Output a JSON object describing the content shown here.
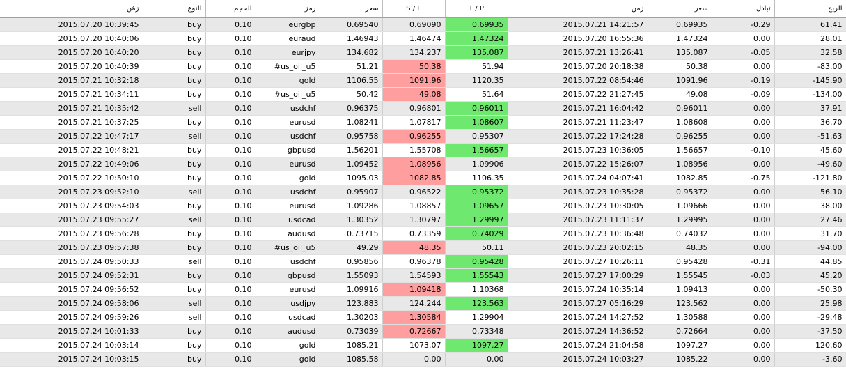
{
  "table": {
    "header": [
      "زمن",
      "النوع",
      "الحجم",
      "رمز",
      "سعر",
      "S / L",
      "T / P",
      "زمن",
      "سعر",
      "تبادل",
      "الربح"
    ],
    "rows": [
      [
        "2015.07.20 10:39:45",
        "buy",
        "0.10",
        "eurgbp",
        "0.69540",
        "0.69090",
        {
          "text": "0.69935",
          "bg": "#6ee86e"
        },
        "2015.07.21 14:21:57",
        "0.69935",
        "-0.29",
        "61.41"
      ],
      [
        "2015.07.20 10:40:06",
        "buy",
        "0.10",
        "euraud",
        "1.46943",
        "1.46474",
        {
          "text": "1.47324",
          "bg": "#6ee86e"
        },
        "2015.07.20 16:55:36",
        "1.47324",
        "0.00",
        "28.01"
      ],
      [
        "2015.07.20 10:40:20",
        "buy",
        "0.10",
        "eurjpy",
        "134.682",
        "134.237",
        {
          "text": "135.087",
          "bg": "#6ee86e"
        },
        "2015.07.21 13:26:41",
        "135.087",
        "-0.05",
        "32.58"
      ],
      [
        "2015.07.20 10:40:39",
        "buy",
        "0.10",
        "#us_oil_u5",
        "51.21",
        {
          "text": "50.38",
          "bg": "#ff9e9e"
        },
        "51.94",
        "2015.07.20 20:18:38",
        "50.38",
        "0.00",
        "-83.00"
      ],
      [
        "2015.07.21 10:32:18",
        "buy",
        "0.10",
        "gold",
        "1106.55",
        {
          "text": "1091.96",
          "bg": "#ff9e9e"
        },
        "1120.35",
        "2015.07.22 08:54:46",
        "1091.96",
        "-0.19",
        "-145.90"
      ],
      [
        "2015.07.21 10:34:11",
        "buy",
        "0.10",
        "#us_oil_u5",
        "50.42",
        {
          "text": "49.08",
          "bg": "#ff9e9e"
        },
        "51.64",
        "2015.07.22 21:27:45",
        "49.08",
        "-0.09",
        "-134.00"
      ],
      [
        "2015.07.21 10:35:42",
        "sell",
        "0.10",
        "usdchf",
        "0.96375",
        "0.96801",
        {
          "text": "0.96011",
          "bg": "#6ee86e"
        },
        "2015.07.21 16:04:42",
        "0.96011",
        "0.00",
        "37.91"
      ],
      [
        "2015.07.21 10:37:25",
        "buy",
        "0.10",
        "eurusd",
        "1.08241",
        "1.07817",
        {
          "text": "1.08607",
          "bg": "#6ee86e"
        },
        "2015.07.21 11:23:47",
        "1.08608",
        "0.00",
        "36.70"
      ],
      [
        "2015.07.22 10:47:17",
        "sell",
        "0.10",
        "usdchf",
        "0.95758",
        {
          "text": "0.96255",
          "bg": "#ff9e9e"
        },
        "0.95307",
        "2015.07.22 17:24:28",
        "0.96255",
        "0.00",
        "-51.63"
      ],
      [
        "2015.07.22 10:48:21",
        "buy",
        "0.10",
        "gbpusd",
        "1.56201",
        "1.55708",
        {
          "text": "1.56657",
          "bg": "#6ee86e"
        },
        "2015.07.23 10:36:05",
        "1.56657",
        "-0.10",
        "45.60"
      ],
      [
        "2015.07.22 10:49:06",
        "buy",
        "0.10",
        "eurusd",
        "1.09452",
        {
          "text": "1.08956",
          "bg": "#ff9e9e"
        },
        "1.09906",
        "2015.07.22 15:26:07",
        "1.08956",
        "0.00",
        "-49.60"
      ],
      [
        "2015.07.22 10:50:10",
        "buy",
        "0.10",
        "gold",
        "1095.03",
        {
          "text": "1082.85",
          "bg": "#ff9e9e"
        },
        "1106.35",
        "2015.07.24 04:07:41",
        "1082.85",
        "-0.75",
        "-121.80"
      ],
      [
        "2015.07.23 09:52:10",
        "sell",
        "0.10",
        "usdchf",
        "0.95907",
        "0.96522",
        {
          "text": "0.95372",
          "bg": "#6ee86e"
        },
        "2015.07.23 10:35:28",
        "0.95372",
        "0.00",
        "56.10"
      ],
      [
        "2015.07.23 09:54:03",
        "buy",
        "0.10",
        "eurusd",
        "1.09286",
        "1.08857",
        {
          "text": "1.09657",
          "bg": "#6ee86e"
        },
        "2015.07.23 10:30:05",
        "1.09666",
        "0.00",
        "38.00"
      ],
      [
        "2015.07.23 09:55:27",
        "sell",
        "0.10",
        "usdcad",
        "1.30352",
        "1.30797",
        {
          "text": "1.29997",
          "bg": "#6ee86e"
        },
        "2015.07.23 11:11:37",
        "1.29995",
        "0.00",
        "27.46"
      ],
      [
        "2015.07.23 09:56:28",
        "buy",
        "0.10",
        "audusd",
        "0.73715",
        "0.73359",
        {
          "text": "0.74029",
          "bg": "#6ee86e"
        },
        "2015.07.23 10:36:48",
        "0.74032",
        "0.00",
        "31.70"
      ],
      [
        "2015.07.23 09:57:38",
        "buy",
        "0.10",
        "#us_oil_u5",
        "49.29",
        {
          "text": "48.35",
          "bg": "#ff9e9e"
        },
        "50.11",
        "2015.07.23 20:02:15",
        "48.35",
        "0.00",
        "-94.00"
      ],
      [
        "2015.07.24 09:50:33",
        "sell",
        "0.10",
        "usdchf",
        "0.95856",
        "0.96378",
        {
          "text": "0.95428",
          "bg": "#6ee86e"
        },
        "2015.07.27 10:26:11",
        "0.95428",
        "-0.31",
        "44.85"
      ],
      [
        "2015.07.24 09:52:31",
        "buy",
        "0.10",
        "gbpusd",
        "1.55093",
        "1.54593",
        {
          "text": "1.55543",
          "bg": "#6ee86e"
        },
        "2015.07.27 17:00:29",
        "1.55545",
        "-0.03",
        "45.20"
      ],
      [
        "2015.07.24 09:56:52",
        "buy",
        "0.10",
        "eurusd",
        "1.09916",
        {
          "text": "1.09418",
          "bg": "#ff9e9e"
        },
        "1.10368",
        "2015.07.24 10:35:14",
        "1.09413",
        "0.00",
        "-50.30"
      ],
      [
        "2015.07.24 09:58:06",
        "sell",
        "0.10",
        "usdjpy",
        "123.883",
        "124.244",
        {
          "text": "123.563",
          "bg": "#6ee86e"
        },
        "2015.07.27 05:16:29",
        "123.562",
        "0.00",
        "25.98"
      ],
      [
        "2015.07.24 09:59:26",
        "sell",
        "0.10",
        "usdcad",
        "1.30203",
        {
          "text": "1.30584",
          "bg": "#ff9e9e"
        },
        "1.29904",
        "2015.07.24 14:27:52",
        "1.30588",
        "0.00",
        "-29.48"
      ],
      [
        "2015.07.24 10:01:33",
        "buy",
        "0.10",
        "audusd",
        "0.73039",
        {
          "text": "0.72667",
          "bg": "#ff9e9e"
        },
        "0.73348",
        "2015.07.24 14:36:52",
        "0.72664",
        "0.00",
        "-37.50"
      ],
      [
        "2015.07.24 10:03:14",
        "buy",
        "0.10",
        "gold",
        "1085.21",
        "1073.07",
        {
          "text": "1097.27",
          "bg": "#6ee86e"
        },
        "2015.07.24 21:04:58",
        "1097.27",
        "0.00",
        "120.60"
      ],
      [
        "2015.07.24 10:03:15",
        "buy",
        "0.10",
        "gold",
        "1085.58",
        "0.00",
        "0.00",
        "2015.07.24 10:03:27",
        "1085.22",
        "0.00",
        "-3.60"
      ]
    ]
  }
}
